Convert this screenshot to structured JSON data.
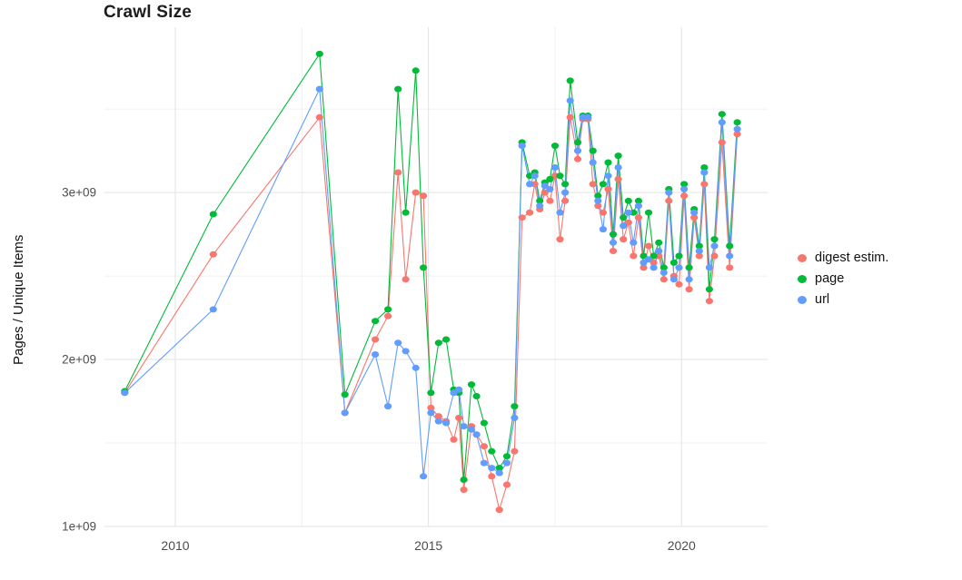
{
  "chart_data": {
    "type": "line",
    "title": "Crawl Size",
    "ylabel": "Pages / Unique Items",
    "xlabel": "",
    "y_unit": "billions (1e9)",
    "x_range": [
      2008.6,
      2021.7
    ],
    "y_range_billions": [
      1.0,
      3.99
    ],
    "grid": true,
    "legend_position": "right",
    "x_ticks": [
      {
        "value": 2010,
        "label": "2010"
      },
      {
        "value": 2015,
        "label": "2015"
      },
      {
        "value": 2020,
        "label": "2020"
      }
    ],
    "x_minor_ticks": [
      2012.5,
      2017.5
    ],
    "y_ticks": [
      {
        "value": 1.0,
        "label": "1e+09"
      },
      {
        "value": 2.0,
        "label": "2e+09"
      },
      {
        "value": 3.0,
        "label": "3e+09"
      }
    ],
    "y_minor_ticks": [
      1.5,
      2.5,
      3.5
    ],
    "style": {
      "major_grid_color": "#e3e3e3",
      "minor_grid_color": "#f0f0f0",
      "tick_label_color": "#4d4d4d",
      "background": "#ffffff"
    },
    "x_years": [
      2009.0,
      2010.75,
      2012.85,
      2013.35,
      2013.95,
      2014.2,
      2014.4,
      2014.55,
      2014.75,
      2014.9,
      2015.05,
      2015.2,
      2015.35,
      2015.5,
      2015.6,
      2015.7,
      2015.85,
      2015.95,
      2016.1,
      2016.25,
      2016.4,
      2016.55,
      2016.7,
      2016.85,
      2017.0,
      2017.1,
      2017.2,
      2017.3,
      2017.4,
      2017.5,
      2017.6,
      2017.7,
      2017.8,
      2017.95,
      2018.05,
      2018.15,
      2018.25,
      2018.35,
      2018.45,
      2018.55,
      2018.65,
      2018.75,
      2018.85,
      2018.95,
      2019.05,
      2019.15,
      2019.25,
      2019.35,
      2019.45,
      2019.55,
      2019.65,
      2019.75,
      2019.85,
      2019.95,
      2020.05,
      2020.15,
      2020.25,
      2020.35,
      2020.45,
      2020.55,
      2020.65,
      2020.8,
      2020.95,
      2021.1
    ],
    "series": [
      {
        "name": "digest estim.",
        "color": "#F8766D",
        "values": [
          1.8,
          2.63,
          3.45,
          1.68,
          2.12,
          2.26,
          3.12,
          2.48,
          3.0,
          2.98,
          1.71,
          1.66,
          1.63,
          1.52,
          1.65,
          1.22,
          1.6,
          1.55,
          1.48,
          1.3,
          1.1,
          1.25,
          1.45,
          2.85,
          2.88,
          3.05,
          2.9,
          3.0,
          2.95,
          3.1,
          2.72,
          2.95,
          3.45,
          3.2,
          3.44,
          3.44,
          3.05,
          2.92,
          2.88,
          3.02,
          2.65,
          3.08,
          2.72,
          2.82,
          2.62,
          2.85,
          2.55,
          2.68,
          2.58,
          2.62,
          2.48,
          2.95,
          2.5,
          2.45,
          2.98,
          2.42,
          2.85,
          2.62,
          3.05,
          2.35,
          2.62,
          3.3,
          2.55,
          3.35
        ]
      },
      {
        "name": "page",
        "color": "#00BA38",
        "values": [
          1.81,
          2.87,
          3.83,
          1.79,
          2.23,
          2.3,
          3.62,
          2.88,
          3.73,
          2.55,
          1.8,
          2.1,
          2.12,
          1.82,
          1.8,
          1.28,
          1.85,
          1.78,
          1.62,
          1.45,
          1.35,
          1.42,
          1.72,
          3.3,
          3.1,
          3.12,
          2.95,
          3.06,
          3.08,
          3.28,
          3.1,
          3.05,
          3.67,
          3.3,
          3.46,
          3.46,
          3.25,
          2.98,
          3.05,
          3.18,
          2.75,
          3.22,
          2.85,
          2.95,
          2.88,
          2.95,
          2.62,
          2.88,
          2.62,
          2.7,
          2.55,
          3.02,
          2.58,
          2.62,
          3.05,
          2.55,
          2.9,
          2.68,
          3.15,
          2.42,
          2.72,
          3.47,
          2.68,
          3.42
        ]
      },
      {
        "name": "url",
        "color": "#619CFF",
        "values": [
          1.8,
          2.3,
          3.62,
          1.68,
          2.03,
          1.72,
          2.1,
          2.05,
          1.95,
          1.3,
          1.68,
          1.63,
          1.62,
          1.8,
          1.82,
          1.6,
          1.58,
          1.55,
          1.38,
          1.35,
          1.32,
          1.38,
          1.65,
          3.28,
          3.05,
          3.1,
          2.92,
          3.04,
          3.02,
          3.15,
          2.88,
          3.0,
          3.55,
          3.25,
          3.45,
          3.45,
          3.18,
          2.95,
          2.78,
          3.1,
          2.7,
          3.15,
          2.8,
          2.88,
          2.7,
          2.92,
          2.58,
          2.6,
          2.55,
          2.65,
          2.52,
          3.0,
          2.48,
          2.55,
          3.02,
          2.48,
          2.88,
          2.65,
          3.12,
          2.55,
          2.68,
          3.42,
          2.62,
          3.38
        ]
      }
    ]
  }
}
